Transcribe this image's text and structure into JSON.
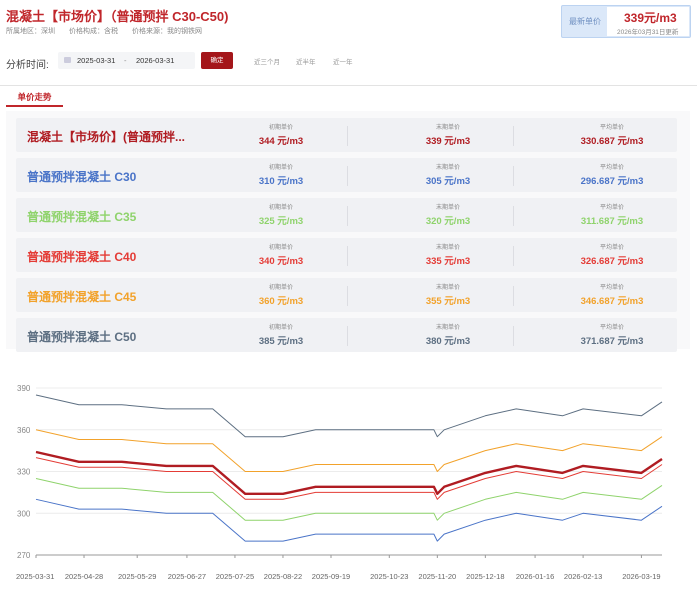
{
  "header": {
    "title": "混凝土【市场价】（普通预拌 C30-C50)",
    "region": "所属地区：深圳",
    "composition": "价格构成：含税",
    "source": "价格来源：我的钢铁网",
    "latest_label": "最新单价",
    "latest_value": "339元/m3",
    "latest_date": "2026年03月31日更新"
  },
  "filter": {
    "label": "分析时间:",
    "start": "2025-03-31",
    "separator": "-",
    "end": "2026-03-31",
    "confirm": "确定",
    "quick": [
      "近三个月",
      "近半年",
      "近一年"
    ]
  },
  "tab": {
    "label": "单价走势"
  },
  "labels": {
    "start": "初期单价",
    "end": "末期单价",
    "avg": "平均单价"
  },
  "rows": [
    {
      "name": "混凝土【市场价】(普通预拌...",
      "start": "344 元/m3",
      "end": "339 元/m3",
      "avg": "330.687 元/m3",
      "color": "#b01c22"
    },
    {
      "name": "普通预拌混凝土 C30",
      "start": "310 元/m3",
      "end": "305 元/m3",
      "avg": "296.687 元/m3",
      "color": "#4a74c8"
    },
    {
      "name": "普通预拌混凝土 C35",
      "start": "325 元/m3",
      "end": "320 元/m3",
      "avg": "311.687 元/m3",
      "color": "#8fd36c"
    },
    {
      "name": "普通预拌混凝土 C40",
      "start": "340 元/m3",
      "end": "335 元/m3",
      "avg": "326.687 元/m3",
      "color": "#e43c36"
    },
    {
      "name": "普通预拌混凝土 C45",
      "start": "360 元/m3",
      "end": "355 元/m3",
      "avg": "346.687 元/m3",
      "color": "#f2a22b"
    },
    {
      "name": "普通预拌混凝土 C50",
      "start": "385 元/m3",
      "end": "380 元/m3",
      "avg": "371.687 元/m3",
      "color": "#5d6f82"
    }
  ],
  "chart_data": {
    "type": "line",
    "title": "",
    "xlabel": "",
    "ylabel": "",
    "ylim": [
      270,
      390
    ],
    "yticks": [
      270,
      300,
      330,
      360,
      390
    ],
    "xticks": [
      "2025-03-31",
      "2025-04-28",
      "2025-05-29",
      "2025-06-27",
      "2025-07-25",
      "2025-08-22",
      "2025-09-19",
      "2025-10-23",
      "2025-11-20",
      "2025-12-18",
      "2026-01-16",
      "2026-02-13",
      "2026-03-19"
    ],
    "grid": true,
    "x": [
      "2025-03-31",
      "2025-04-25",
      "2025-05-20",
      "2025-06-15",
      "2025-07-12",
      "2025-07-31",
      "2025-08-22",
      "2025-09-10",
      "2025-10-23",
      "2025-11-18",
      "2025-11-20",
      "2025-11-24",
      "2025-12-18",
      "2026-01-05",
      "2026-02-01",
      "2026-02-13",
      "2026-03-19",
      "2026-03-31"
    ],
    "series": [
      {
        "name": "混凝土【市场价】(普通预拌...",
        "color": "#b01c22",
        "values": [
          344,
          337,
          337,
          334,
          334,
          314,
          314,
          319,
          319,
          319,
          314,
          319,
          329,
          334,
          329,
          334,
          329,
          339
        ]
      },
      {
        "name": "普通预拌混凝土 C30",
        "color": "#4a74c8",
        "values": [
          310,
          303,
          303,
          300,
          300,
          280,
          280,
          285,
          285,
          285,
          280,
          285,
          295,
          300,
          295,
          300,
          295,
          305
        ]
      },
      {
        "name": "普通预拌混凝土 C35",
        "color": "#8fd36c",
        "values": [
          325,
          318,
          318,
          315,
          315,
          295,
          295,
          300,
          300,
          300,
          295,
          300,
          310,
          315,
          310,
          315,
          310,
          320
        ]
      },
      {
        "name": "普通预拌混凝土 C40",
        "color": "#e43c36",
        "values": [
          340,
          333,
          333,
          330,
          330,
          310,
          310,
          315,
          315,
          315,
          310,
          315,
          325,
          330,
          325,
          330,
          325,
          335
        ]
      },
      {
        "name": "普通预拌混凝土 C45",
        "color": "#f2a22b",
        "values": [
          360,
          353,
          353,
          350,
          350,
          330,
          330,
          335,
          335,
          335,
          330,
          335,
          345,
          350,
          345,
          350,
          345,
          355
        ]
      },
      {
        "name": "普通预拌混凝土 C50",
        "color": "#5d6f82",
        "values": [
          385,
          378,
          378,
          375,
          375,
          355,
          355,
          360,
          360,
          360,
          355,
          360,
          370,
          375,
          370,
          375,
          370,
          380
        ]
      }
    ]
  }
}
